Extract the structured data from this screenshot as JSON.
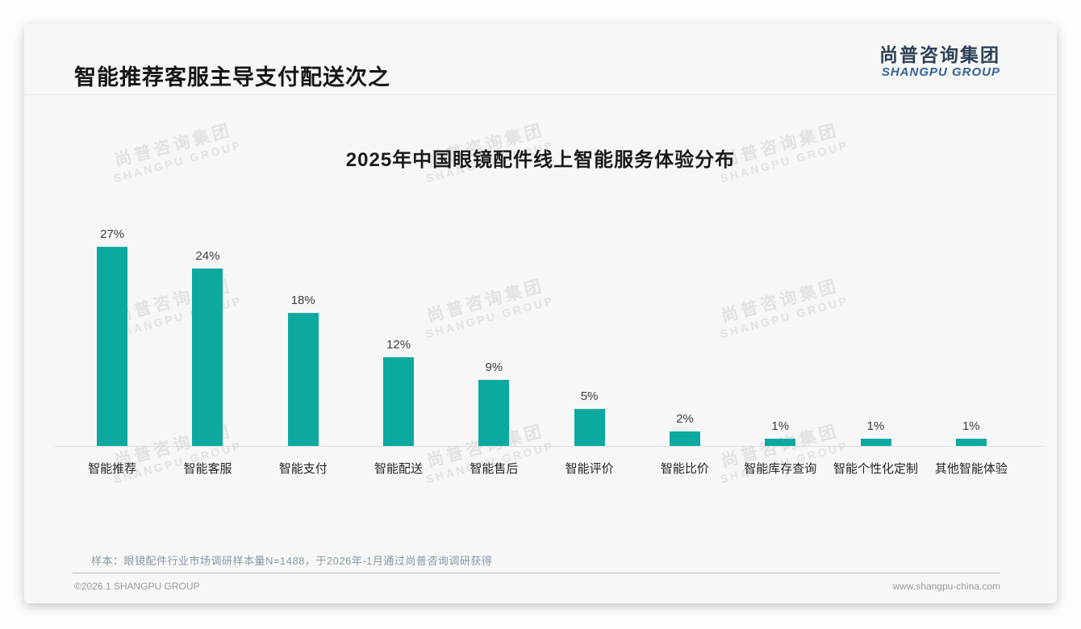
{
  "page": {
    "title": "智能推荐客服主导支付配送次之"
  },
  "logo": {
    "cn": "尚普咨询集团",
    "en": "SHANGPU GROUP"
  },
  "watermark": {
    "line1": "尚普咨询集团",
    "line2": "SHANGPU GROUP"
  },
  "chart_data": {
    "type": "bar",
    "title": "2025年中国眼镜配件线上智能服务体验分布",
    "categories": [
      "智能推荐",
      "智能客服",
      "智能支付",
      "智能配送",
      "智能售后",
      "智能评价",
      "智能比价",
      "智能库存查询",
      "智能个性化定制",
      "其他智能体验"
    ],
    "values": [
      27,
      24,
      18,
      12,
      9,
      5,
      2,
      1,
      1,
      1
    ],
    "unit": "%",
    "xlabel": "",
    "ylabel": "",
    "ylim": [
      0,
      30
    ],
    "grid": false,
    "legend": "none",
    "bar_color": "#0ca9a0",
    "value_label_color": "#3d3d3d"
  },
  "note": "样本：眼镜配件行业市场调研样本量N=1488，于2026年-1月通过尚普咨询调研获得",
  "footer": {
    "left": "©2026.1 SHANGPU GROUP",
    "right": "www.shangpu-china.com"
  }
}
